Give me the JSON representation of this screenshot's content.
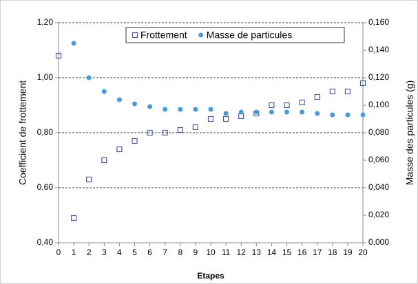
{
  "chart_data": {
    "type": "scatter",
    "xlabel": "Etapes",
    "ylabel": "Coefficient de frottement",
    "y2label": "Masse des particules (g)",
    "x": [
      0,
      1,
      2,
      3,
      4,
      5,
      6,
      7,
      8,
      9,
      10,
      11,
      12,
      13,
      14,
      15,
      16,
      17,
      18,
      19,
      20
    ],
    "xlim": [
      0,
      20
    ],
    "xticks": [
      0,
      1,
      2,
      3,
      4,
      5,
      6,
      7,
      8,
      9,
      10,
      11,
      12,
      13,
      14,
      15,
      16,
      17,
      18,
      19,
      20
    ],
    "ylim": [
      0.4,
      1.2
    ],
    "yticks": [
      {
        "value": 0.4,
        "label": "0,40"
      },
      {
        "value": 0.6,
        "label": "0,60"
      },
      {
        "value": 0.8,
        "label": "0,80"
      },
      {
        "value": 1.0,
        "label": "1,00"
      },
      {
        "value": 1.2,
        "label": "1,20"
      }
    ],
    "y2lim": [
      0,
      0.16
    ],
    "y2ticks": [
      {
        "value": 0,
        "label": "0,000"
      },
      {
        "value": 0.02,
        "label": "0,020"
      },
      {
        "value": 0.04,
        "label": "0,040"
      },
      {
        "value": 0.06,
        "label": "0,060"
      },
      {
        "value": 0.08,
        "label": "0,080"
      },
      {
        "value": 0.1,
        "label": "0,100"
      },
      {
        "value": 0.12,
        "label": "0,120"
      },
      {
        "value": 0.14,
        "label": "0,140"
      },
      {
        "value": 0.16,
        "label": "0,160"
      }
    ],
    "grid": true,
    "legend": "top",
    "series": [
      {
        "name": "Frottement",
        "color": "#4a5aa0",
        "marker": "square-open",
        "values": [
          1.08,
          0.49,
          0.63,
          0.7,
          0.74,
          0.77,
          0.8,
          0.8,
          0.81,
          0.82,
          0.85,
          0.85,
          0.86,
          0.87,
          0.9,
          0.9,
          0.91,
          0.93,
          0.95,
          0.95,
          0.98
        ]
      },
      {
        "name": "Masse de particules",
        "color": "#4a9ad4",
        "marker": "circle",
        "axis": "y2",
        "values": [
          null,
          0.145,
          0.12,
          0.11,
          0.104,
          0.101,
          0.099,
          0.097,
          0.097,
          0.097,
          0.097,
          0.094,
          0.095,
          0.095,
          0.095,
          0.095,
          0.095,
          0.094,
          0.093,
          0.093,
          0.093
        ]
      }
    ]
  }
}
